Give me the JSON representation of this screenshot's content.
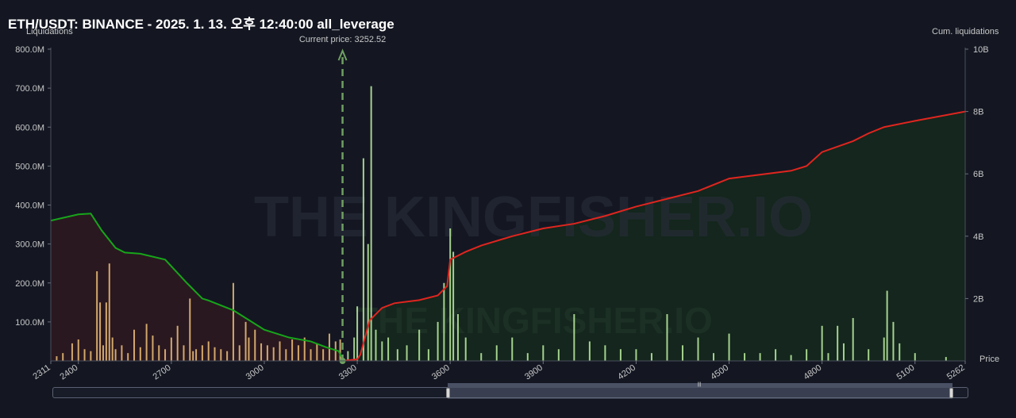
{
  "title": "ETH/USDT: BINANCE - 2025. 1. 13. 오후 12:40:00 all_leverage",
  "left_axis_title": "Liquidations",
  "right_axis_title": "Cum. liquidations",
  "x_axis_title": "Price",
  "current_price_label": "Current price: 3252.52",
  "watermark": "THE KINGFISHER.IO",
  "colors": {
    "background": "#141722",
    "short_cum_line": "#e0251f",
    "long_cum_line": "#17a51a",
    "short_area": "#14261d",
    "long_area": "#2a1820",
    "current_price_line": "#6fa061",
    "short_bars": "#b5e59a",
    "long_bars": "#f0c27a"
  },
  "chart_data": {
    "type": "bar",
    "current_price": 3252.52,
    "xlim": [
      2311,
      5262
    ],
    "x_ticks": [
      "2311",
      "2400",
      "2700",
      "3000",
      "3300",
      "3600",
      "3900",
      "4200",
      "4500",
      "4800",
      "5100",
      "5262"
    ],
    "left_y_ticks": [
      "800.0M",
      "700.0M",
      "600.0M",
      "500.0M",
      "400.0M",
      "300.0M",
      "200.0M",
      "100.0M"
    ],
    "right_y_ticks": [
      "10B",
      "8B",
      "6B",
      "4B",
      "2B"
    ],
    "ylim_left_millions": [
      0,
      800
    ],
    "ylim_right_billions": [
      0,
      10
    ],
    "cumulative_long_liquidations_millions": {
      "x": [
        2311,
        2400,
        2440,
        2475,
        2520,
        2550,
        2600,
        2680,
        2750,
        2800,
        2820,
        2900,
        2960,
        3000,
        3080,
        3150,
        3200,
        3240,
        3252
      ],
      "y": [
        360,
        376,
        378,
        335,
        290,
        278,
        275,
        260,
        200,
        160,
        155,
        130,
        100,
        80,
        60,
        50,
        35,
        25,
        5
      ]
    },
    "cumulative_short_liquidations_billions": {
      "x": [
        3252,
        3300,
        3310,
        3340,
        3380,
        3420,
        3500,
        3560,
        3590,
        3600,
        3650,
        3700,
        3800,
        3900,
        4000,
        4100,
        4200,
        4300,
        4400,
        4500,
        4700,
        4750,
        4800,
        4900,
        4950,
        5000,
        5100,
        5262
      ],
      "y": [
        0.0,
        0.05,
        0.2,
        1.3,
        1.7,
        1.85,
        1.95,
        2.1,
        2.4,
        3.25,
        3.5,
        3.7,
        4.0,
        4.25,
        4.4,
        4.65,
        4.95,
        5.2,
        5.45,
        5.85,
        6.1,
        6.25,
        6.7,
        7.05,
        7.3,
        7.5,
        7.7,
        8.0
      ]
    },
    "long_liquidation_bars_millions": {
      "x": [
        2330,
        2350,
        2380,
        2400,
        2420,
        2440,
        2460,
        2470,
        2480,
        2490,
        2500,
        2510,
        2520,
        2540,
        2560,
        2580,
        2600,
        2620,
        2640,
        2660,
        2680,
        2700,
        2720,
        2740,
        2760,
        2770,
        2780,
        2800,
        2820,
        2840,
        2860,
        2880,
        2900,
        2920,
        2940,
        2950,
        2970,
        2990,
        3010,
        3030,
        3050,
        3070,
        3090,
        3110,
        3130,
        3150,
        3170,
        3190,
        3210,
        3230,
        3245
      ],
      "y": [
        12,
        20,
        45,
        55,
        30,
        25,
        230,
        150,
        40,
        150,
        250,
        60,
        30,
        40,
        20,
        80,
        35,
        95,
        65,
        40,
        30,
        60,
        90,
        40,
        160,
        25,
        30,
        40,
        50,
        35,
        30,
        25,
        200,
        40,
        100,
        60,
        80,
        45,
        40,
        35,
        50,
        30,
        55,
        40,
        60,
        30,
        45,
        30,
        70,
        50,
        55
      ]
    },
    "short_liquidation_bars_millions": {
      "x": [
        3270,
        3290,
        3300,
        3320,
        3335,
        3345,
        3360,
        3380,
        3400,
        3430,
        3460,
        3500,
        3530,
        3560,
        3580,
        3600,
        3610,
        3625,
        3650,
        3700,
        3750,
        3800,
        3850,
        3900,
        3950,
        4000,
        4050,
        4100,
        4150,
        4200,
        4250,
        4300,
        4350,
        4400,
        4450,
        4500,
        4550,
        4600,
        4650,
        4700,
        4750,
        4800,
        4820,
        4850,
        4870,
        4900,
        4950,
        5000,
        5010,
        5030,
        5050,
        5100,
        5200
      ],
      "y": [
        25,
        60,
        140,
        520,
        300,
        705,
        80,
        50,
        60,
        30,
        40,
        80,
        30,
        100,
        200,
        340,
        280,
        120,
        60,
        20,
        40,
        60,
        20,
        40,
        30,
        120,
        50,
        40,
        30,
        30,
        20,
        120,
        40,
        60,
        20,
        70,
        20,
        20,
        30,
        15,
        30,
        90,
        20,
        90,
        45,
        110,
        30,
        60,
        180,
        100,
        45,
        20,
        10
      ]
    }
  }
}
